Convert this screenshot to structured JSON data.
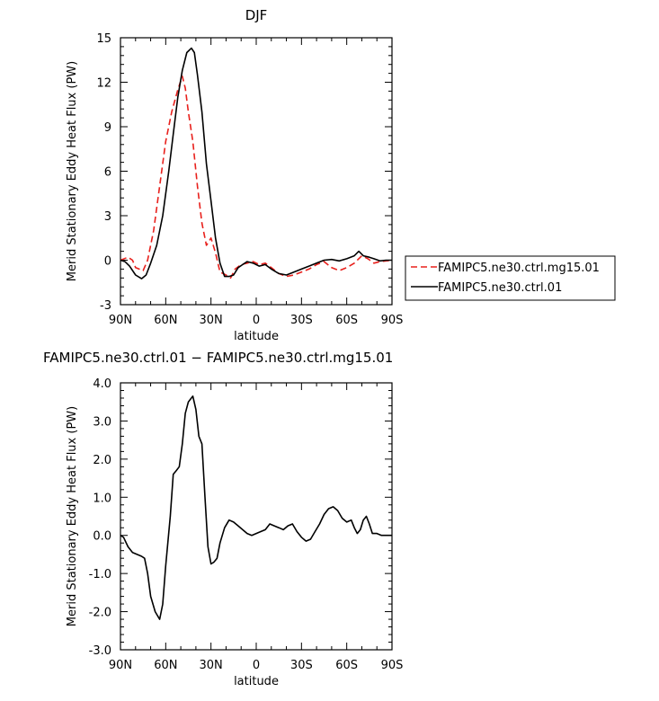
{
  "chart_data": [
    {
      "type": "line",
      "title": "DJF",
      "xlabel": "latitude",
      "ylabel": "Merid Stationary Eddy Heat Flux (PW)",
      "xlim": [
        90,
        -90
      ],
      "ylim": [
        -3,
        15
      ],
      "x_ticks": [
        90,
        60,
        30,
        0,
        -30,
        -60,
        -90
      ],
      "x_tick_labels": [
        "90N",
        "60N",
        "30N",
        "0",
        "30S",
        "60S",
        "90S"
      ],
      "y_ticks": [
        -3,
        0,
        3,
        6,
        9,
        12,
        15
      ],
      "y_tick_labels": [
        "-3",
        "0",
        "3",
        "6",
        "9",
        "12",
        "15"
      ],
      "legend_position": "right",
      "series": [
        {
          "name": "FAMIPC5.ne30.ctrl.mg15.01",
          "color": "#e8201c",
          "style": "dashed",
          "points": [
            [
              90,
              0
            ],
            [
              85,
              0.2
            ],
            [
              82,
              0
            ],
            [
              80,
              -0.5
            ],
            [
              75,
              -0.7
            ],
            [
              72,
              0
            ],
            [
              68,
              2
            ],
            [
              64,
              5
            ],
            [
              60,
              8
            ],
            [
              56,
              10
            ],
            [
              52,
              11.5
            ],
            [
              49,
              12.4
            ],
            [
              47,
              11.6
            ],
            [
              45,
              10
            ],
            [
              42,
              8
            ],
            [
              39,
              5
            ],
            [
              36,
              2.5
            ],
            [
              33,
              1
            ],
            [
              30,
              1.5
            ],
            [
              27,
              0.5
            ],
            [
              24,
              -0.8
            ],
            [
              20,
              -1
            ],
            [
              17,
              -1.2
            ],
            [
              14,
              -0.6
            ],
            [
              10,
              -0.3
            ],
            [
              6,
              -0.2
            ],
            [
              2,
              -0.1
            ],
            [
              -2,
              -0.3
            ],
            [
              -6,
              -0.2
            ],
            [
              -10,
              -0.5
            ],
            [
              -15,
              -0.9
            ],
            [
              -20,
              -1.1
            ],
            [
              -25,
              -1
            ],
            [
              -30,
              -0.8
            ],
            [
              -35,
              -0.6
            ],
            [
              -40,
              -0.3
            ],
            [
              -45,
              -0.1
            ],
            [
              -50,
              -0.5
            ],
            [
              -55,
              -0.7
            ],
            [
              -60,
              -0.5
            ],
            [
              -65,
              -0.2
            ],
            [
              -70,
              0.3
            ],
            [
              -74,
              0.1
            ],
            [
              -78,
              -0.2
            ],
            [
              -82,
              -0.1
            ],
            [
              -86,
              -0.05
            ],
            [
              -90,
              0
            ]
          ]
        },
        {
          "name": "FAMIPC5.ne30.ctrl.01",
          "color": "#000000",
          "style": "solid",
          "points": [
            [
              90,
              0
            ],
            [
              87,
              -0.1
            ],
            [
              84,
              -0.4
            ],
            [
              80,
              -1
            ],
            [
              76,
              -1.25
            ],
            [
              73,
              -1
            ],
            [
              70,
              -0.2
            ],
            [
              66,
              1
            ],
            [
              62,
              3
            ],
            [
              58,
              6
            ],
            [
              55,
              8.5
            ],
            [
              52,
              11
            ],
            [
              49,
              12.8
            ],
            [
              46,
              14
            ],
            [
              43,
              14.3
            ],
            [
              41,
              14
            ],
            [
              39,
              12.5
            ],
            [
              36,
              10
            ],
            [
              33,
              6.5
            ],
            [
              30,
              4
            ],
            [
              27,
              1.5
            ],
            [
              24,
              -0.2
            ],
            [
              21,
              -1.1
            ],
            [
              18,
              -1.1
            ],
            [
              15,
              -1
            ],
            [
              12,
              -0.5
            ],
            [
              9,
              -0.3
            ],
            [
              6,
              -0.1
            ],
            [
              2,
              -0.2
            ],
            [
              -2,
              -0.4
            ],
            [
              -6,
              -0.3
            ],
            [
              -10,
              -0.6
            ],
            [
              -15,
              -0.9
            ],
            [
              -20,
              -1
            ],
            [
              -25,
              -0.8
            ],
            [
              -30,
              -0.6
            ],
            [
              -35,
              -0.4
            ],
            [
              -40,
              -0.2
            ],
            [
              -45,
              0
            ],
            [
              -50,
              0.05
            ],
            [
              -55,
              -0.05
            ],
            [
              -60,
              0.1
            ],
            [
              -65,
              0.3
            ],
            [
              -68,
              0.6
            ],
            [
              -71,
              0.3
            ],
            [
              -75,
              0.2
            ],
            [
              -78,
              0.1
            ],
            [
              -82,
              -0.05
            ],
            [
              -86,
              0
            ],
            [
              -90,
              0
            ]
          ]
        }
      ]
    },
    {
      "type": "line",
      "title": "FAMIPC5.ne30.ctrl.01 − FAMIPC5.ne30.ctrl.mg15.01",
      "xlabel": "latitude",
      "ylabel": "Merid Stationary Eddy Heat Flux (PW)",
      "xlim": [
        90,
        -90
      ],
      "ylim": [
        -3,
        4
      ],
      "x_ticks": [
        90,
        60,
        30,
        0,
        -30,
        -60,
        -90
      ],
      "x_tick_labels": [
        "90N",
        "60N",
        "30N",
        "0",
        "30S",
        "60S",
        "90S"
      ],
      "y_ticks": [
        -3,
        -2,
        -1,
        0,
        1,
        2,
        3,
        4
      ],
      "y_tick_labels": [
        "-3.0",
        "-2.0",
        "-1.0",
        "0.0",
        "1.0",
        "2.0",
        "3.0",
        "4.0"
      ],
      "series": [
        {
          "color": "#000000",
          "style": "solid",
          "points": [
            [
              90,
              0
            ],
            [
              88,
              -0.05
            ],
            [
              85,
              -0.3
            ],
            [
              82,
              -0.45
            ],
            [
              79,
              -0.5
            ],
            [
              76,
              -0.55
            ],
            [
              74,
              -0.6
            ],
            [
              72,
              -1
            ],
            [
              70,
              -1.6
            ],
            [
              67,
              -2
            ],
            [
              64,
              -2.2
            ],
            [
              62,
              -1.8
            ],
            [
              60,
              -0.8
            ],
            [
              57,
              0.5
            ],
            [
              55,
              1.6
            ],
            [
              53,
              1.7
            ],
            [
              51,
              1.8
            ],
            [
              49,
              2.4
            ],
            [
              47,
              3.2
            ],
            [
              45,
              3.5
            ],
            [
              42,
              3.65
            ],
            [
              40,
              3.3
            ],
            [
              38,
              2.6
            ],
            [
              36,
              2.4
            ],
            [
              34,
              1
            ],
            [
              32,
              -0.3
            ],
            [
              30,
              -0.75
            ],
            [
              28,
              -0.7
            ],
            [
              26,
              -0.6
            ],
            [
              24,
              -0.2
            ],
            [
              21,
              0.2
            ],
            [
              18,
              0.4
            ],
            [
              15,
              0.35
            ],
            [
              12,
              0.25
            ],
            [
              9,
              0.15
            ],
            [
              6,
              0.05
            ],
            [
              3,
              0
            ],
            [
              0,
              0.05
            ],
            [
              -3,
              0.1
            ],
            [
              -6,
              0.15
            ],
            [
              -9,
              0.3
            ],
            [
              -12,
              0.25
            ],
            [
              -15,
              0.2
            ],
            [
              -18,
              0.15
            ],
            [
              -21,
              0.25
            ],
            [
              -24,
              0.3
            ],
            [
              -27,
              0.1
            ],
            [
              -30,
              -0.05
            ],
            [
              -33,
              -0.15
            ],
            [
              -36,
              -0.1
            ],
            [
              -39,
              0.1
            ],
            [
              -42,
              0.3
            ],
            [
              -45,
              0.55
            ],
            [
              -48,
              0.7
            ],
            [
              -51,
              0.75
            ],
            [
              -54,
              0.65
            ],
            [
              -57,
              0.45
            ],
            [
              -60,
              0.35
            ],
            [
              -63,
              0.4
            ],
            [
              -65,
              0.2
            ],
            [
              -67,
              0.05
            ],
            [
              -69,
              0.15
            ],
            [
              -71,
              0.4
            ],
            [
              -73,
              0.5
            ],
            [
              -75,
              0.3
            ],
            [
              -77,
              0.05
            ],
            [
              -80,
              0.05
            ],
            [
              -83,
              0
            ],
            [
              -86,
              0
            ],
            [
              -90,
              0
            ]
          ]
        }
      ]
    }
  ]
}
